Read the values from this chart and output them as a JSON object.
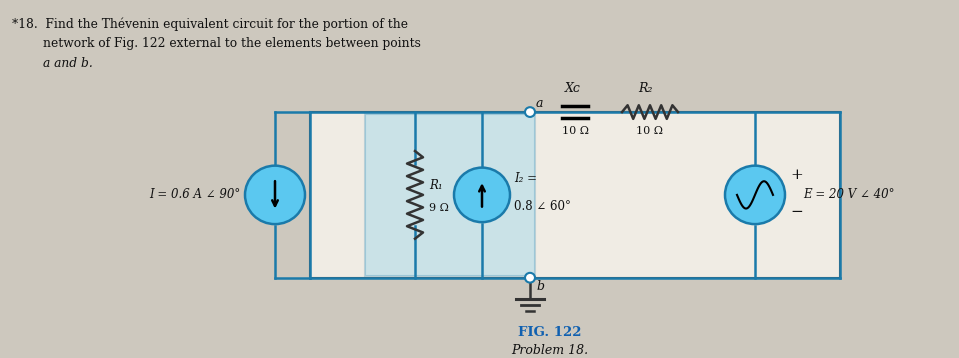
{
  "bg_color": "#cdc8be",
  "circuit_bg": "#f0ece4",
  "blue_fill": "#5bc8f0",
  "blue_edge": "#1a7aaa",
  "wire_color": "#1a7aaa",
  "resistor_color": "#333333",
  "text_dark": "#111111",
  "text_blue": "#1060b0",
  "problem_line1": "*18.  Find the Thévenin equivalent circuit for the portion of the",
  "problem_line2": "        network of Fig. 122 external to the elements between points",
  "problem_line3": "        a and b.",
  "fig_label": "FIG. 122",
  "prob_label": "Problem 18.",
  "I1_label": "I = 0.6 A ∠ 90°",
  "R1_label": "R₁",
  "R1_val": "9 Ω",
  "I2_label": "I₂ =",
  "I2_val": "0.8 ∠ 60°",
  "Xc_label": "Xᴄ",
  "Xc_val": "10 Ω",
  "R2_label": "R₂",
  "R2_val": "10 Ω",
  "E_label": "E = 20 V ∠ 40°",
  "a_label": "a",
  "b_label": "b",
  "plus_label": "+",
  "minus_label": "−"
}
